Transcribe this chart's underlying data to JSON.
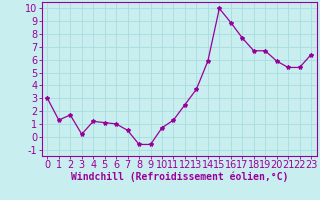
{
  "x": [
    0,
    1,
    2,
    3,
    4,
    5,
    6,
    7,
    8,
    9,
    10,
    11,
    12,
    13,
    14,
    15,
    16,
    17,
    18,
    19,
    20,
    21,
    22,
    23
  ],
  "y": [
    3.0,
    1.3,
    1.7,
    0.2,
    1.2,
    1.1,
    1.0,
    0.5,
    -0.6,
    -0.6,
    0.7,
    1.3,
    2.5,
    3.7,
    5.9,
    10.0,
    8.9,
    7.7,
    6.7,
    6.7,
    5.9,
    5.4,
    5.4,
    6.4
  ],
  "line_color": "#990099",
  "marker": "*",
  "marker_size": 3,
  "background_color": "#c8eef0",
  "grid_color": "#aadddd",
  "xlabel": "Windchill (Refroidissement éolien,°C)",
  "xlabel_fontsize": 7,
  "tick_fontsize": 7,
  "ylim": [
    -1.5,
    10.5
  ],
  "xlim": [
    -0.5,
    23.5
  ],
  "yticks": [
    -1,
    0,
    1,
    2,
    3,
    4,
    5,
    6,
    7,
    8,
    9,
    10
  ],
  "xticks": [
    0,
    1,
    2,
    3,
    4,
    5,
    6,
    7,
    8,
    9,
    10,
    11,
    12,
    13,
    14,
    15,
    16,
    17,
    18,
    19,
    20,
    21,
    22,
    23
  ]
}
